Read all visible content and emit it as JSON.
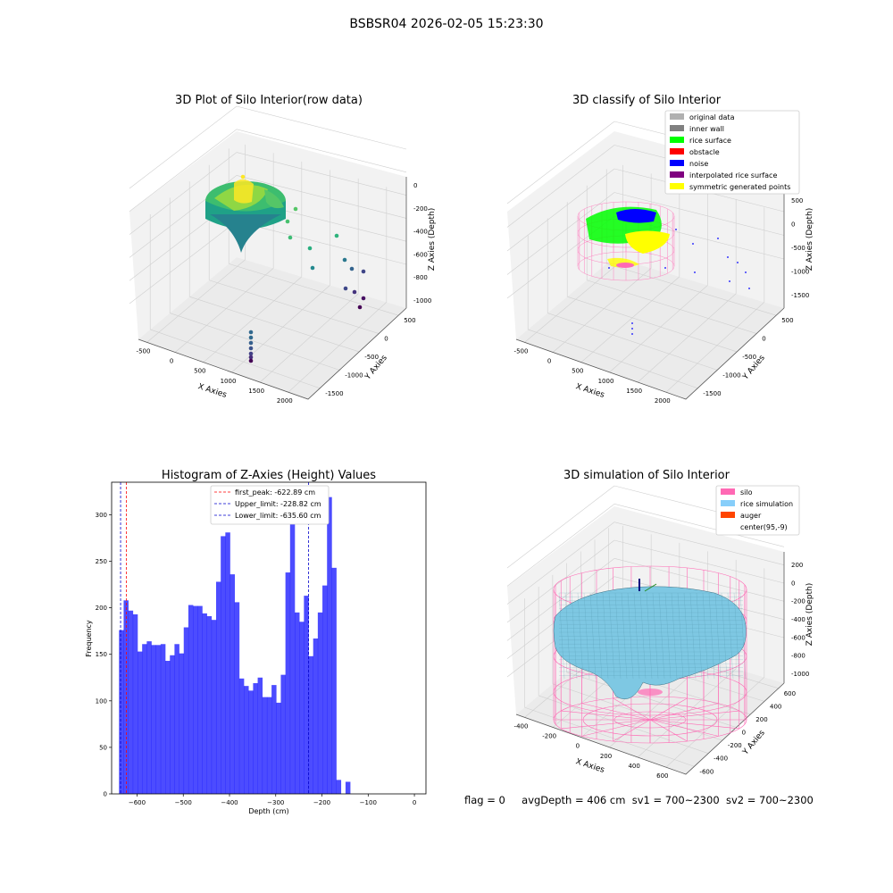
{
  "suptitle": "BSBSR04 2026-02-05 15:23:30",
  "status_bar": {
    "flag": "flag = 0",
    "avg_depth": "avgDepth = 406 cm",
    "sv1": "sv1 = 700~2300",
    "sv2": "sv2 = 700~2300"
  },
  "chart_data": [
    {
      "id": "raw",
      "type": "scatter",
      "title": "3D Plot of Silo Interior(row data)",
      "xlabel": "X Axies",
      "ylabel": "Y Axies",
      "zlabel": "Z Axies (Depth)",
      "x_ticks": [
        "-500",
        "0",
        "500",
        "1000",
        "1500",
        "2000"
      ],
      "y_ticks": [
        "500",
        "0",
        "-500",
        "-1000",
        "-1500"
      ],
      "z_ticks": [
        "0",
        "-200",
        "-400",
        "-600",
        "-800",
        "-1000"
      ],
      "grid": true
    },
    {
      "id": "classify",
      "type": "scatter",
      "title": "3D classify of Silo Interior",
      "xlabel": "X Axies",
      "ylabel": "Y Axies",
      "zlabel": "Z Axies (Depth)",
      "x_ticks": [
        "-500",
        "0",
        "500",
        "1000",
        "1500",
        "2000"
      ],
      "y_ticks": [
        "500",
        "0",
        "-500",
        "-1000",
        "-1500"
      ],
      "z_ticks": [
        "500",
        "0",
        "-500",
        "-1000",
        "-1500"
      ],
      "legend_placement": "top-right",
      "legend": [
        {
          "label": "original data",
          "color": "#b0b0b0"
        },
        {
          "label": "inner wall",
          "color": "#808080"
        },
        {
          "label": "rice surface",
          "color": "#00ff00"
        },
        {
          "label": "obstacle",
          "color": "#ff0000"
        },
        {
          "label": "noise",
          "color": "#0000ff"
        },
        {
          "label": "interpolated rice surface",
          "color": "#800080"
        },
        {
          "label": "symmetric generated points",
          "color": "#ffff00"
        }
      ],
      "grid": true
    },
    {
      "id": "histogram",
      "type": "bar",
      "title": "Histogram of Z-Axies (Height) Values",
      "xlabel": "Depth (cm)",
      "ylabel": "Frequency",
      "xlim": [
        -655,
        25
      ],
      "ylim": [
        0,
        335
      ],
      "x_ticks": [
        -600,
        -500,
        -400,
        -300,
        -200,
        -100,
        0
      ],
      "y_ticks": [
        0,
        50,
        100,
        150,
        200,
        250,
        300
      ],
      "bar_color": "#0000ff",
      "bin_start": -639,
      "bin_width": 10,
      "values": [
        176,
        208,
        197,
        193,
        153,
        161,
        164,
        160,
        160,
        161,
        143,
        149,
        161,
        151,
        179,
        203,
        202,
        202,
        194,
        191,
        187,
        228,
        277,
        281,
        236,
        206,
        124,
        116,
        111,
        119,
        125,
        104,
        104,
        117,
        98,
        128,
        238,
        290,
        195,
        185,
        213,
        148,
        167,
        195,
        224,
        319,
        243,
        15,
        0,
        13
      ],
      "vlines": [
        {
          "label": "first_peak: -622.89 cm",
          "x": -622.89,
          "color": "#ff0000"
        },
        {
          "label": "Upper_limit: -228.82 cm",
          "x": -228.82,
          "color": "#0000cc"
        },
        {
          "label": "Lower_limit: -635.60 cm",
          "x": -635.6,
          "color": "#0000cc"
        }
      ],
      "legend_placement": "top-center",
      "grid": false
    },
    {
      "id": "simulation",
      "type": "scatter",
      "title": "3D simulation of Silo Interior",
      "xlabel": "X Axies",
      "ylabel": "Y Axies",
      "zlabel": "Z Axies (Depth)",
      "x_ticks": [
        "-400",
        "-200",
        "0",
        "200",
        "400",
        "600"
      ],
      "y_ticks": [
        "600",
        "400",
        "200",
        "0",
        "-200",
        "-400",
        "-600"
      ],
      "z_ticks": [
        "200",
        "0",
        "-200",
        "-400",
        "-600",
        "-800",
        "-1000"
      ],
      "legend_placement": "top-right",
      "legend": [
        {
          "label": "silo",
          "color": "#ff69b4"
        },
        {
          "label": "rice simulation",
          "color": "#87cefa"
        },
        {
          "label": "auger",
          "color": "#ff4500"
        },
        {
          "label": "center(95,-9)",
          "color": ""
        }
      ],
      "grid": true
    }
  ]
}
